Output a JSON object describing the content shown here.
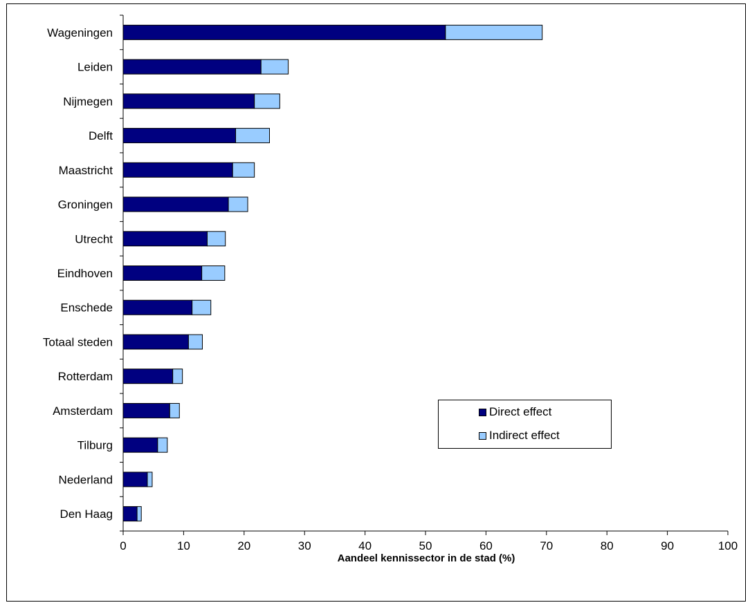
{
  "chart_data": {
    "type": "bar",
    "orientation": "horizontal",
    "stacked": true,
    "categories": [
      "Wageningen",
      "Leiden",
      "Nijmegen",
      "Delft",
      "Maastricht",
      "Groningen",
      "Utrecht",
      "Eindhoven",
      "Enschede",
      "Totaal steden",
      "Rotterdam",
      "Amsterdam",
      "Tilburg",
      "Nederland",
      "Den Haag"
    ],
    "series": [
      {
        "name": "Direct effect",
        "color": "#000080",
        "values": [
          53.3,
          22.8,
          21.7,
          18.6,
          18.1,
          17.4,
          13.9,
          13.0,
          11.4,
          10.8,
          8.2,
          7.7,
          5.7,
          4.0,
          2.3
        ]
      },
      {
        "name": "Indirect effect",
        "color": "#99ccff",
        "values": [
          16.0,
          4.5,
          4.2,
          5.6,
          3.6,
          3.2,
          3.0,
          3.8,
          3.1,
          2.3,
          1.6,
          1.6,
          1.6,
          0.8,
          0.7
        ]
      }
    ],
    "xlabel": "Aandeel kennissector in de stad (%)",
    "xlim": [
      0,
      100
    ],
    "xticks": [
      "0",
      "10",
      "20",
      "30",
      "40",
      "50",
      "60",
      "70",
      "80",
      "90",
      "100"
    ],
    "grid": false,
    "legend_position": "right"
  }
}
